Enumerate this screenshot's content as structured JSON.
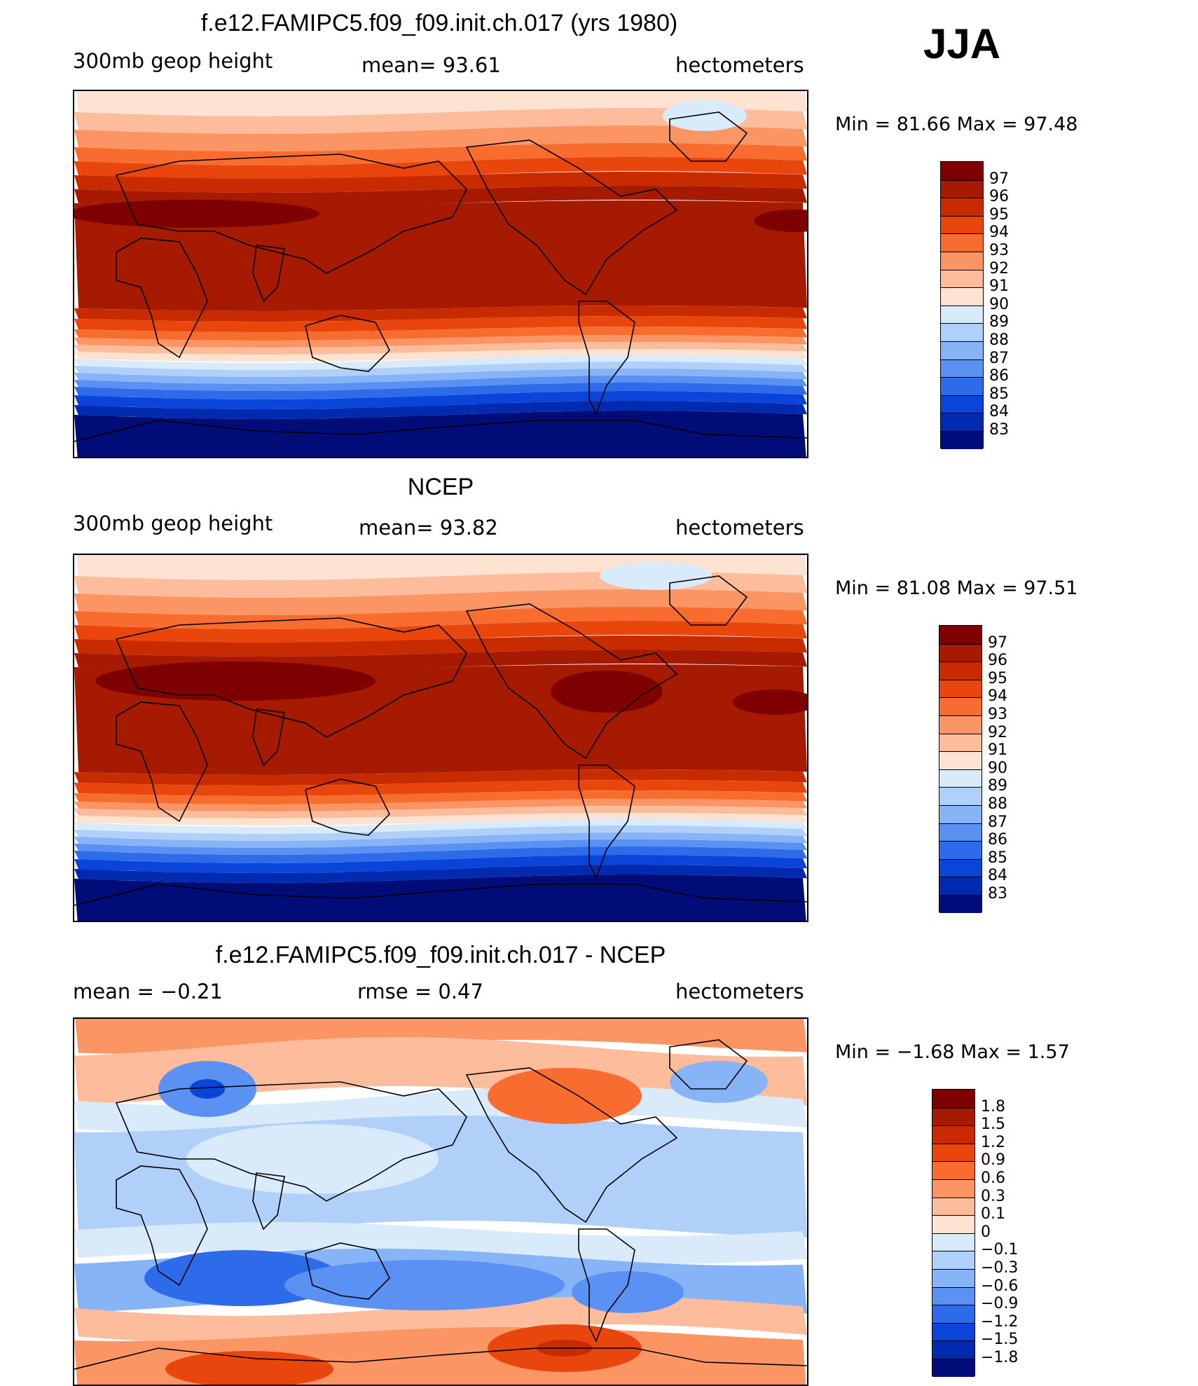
{
  "season": "JJA",
  "panels": [
    {
      "id": "model",
      "title": "f.e12.FAMIPC5.f09_f09.init.ch.017 (yrs 1980)",
      "left_label": "300mb geop height",
      "mid_label": "mean=   93.61",
      "right_label": "hectometers",
      "minmax": "Min =   81.66 Max =   97.48",
      "colorbar": {
        "labels": [
          "97",
          "96",
          "95",
          "94",
          "93",
          "92",
          "91",
          "90",
          "89",
          "88",
          "87",
          "86",
          "85",
          "84",
          "83"
        ],
        "colors": [
          "#7f0000",
          "#a51a00",
          "#c92b00",
          "#e8460c",
          "#f86c30",
          "#fb9564",
          "#fdbc9c",
          "#fee3d2",
          "#d9ebfb",
          "#b0d0fa",
          "#86b4f7",
          "#5b91f2",
          "#2e6bea",
          "#0a44d9",
          "#002ab0",
          "#000c78"
        ]
      }
    },
    {
      "id": "obs",
      "title": "NCEP",
      "left_label": "300mb geop height",
      "mid_label": "mean=   93.82",
      "right_label": "hectometers",
      "minmax": "Min =   81.08 Max =   97.51",
      "colorbar": {
        "labels": [
          "97",
          "96",
          "95",
          "94",
          "93",
          "92",
          "91",
          "90",
          "89",
          "88",
          "87",
          "86",
          "85",
          "84",
          "83"
        ],
        "colors": [
          "#7f0000",
          "#a51a00",
          "#c92b00",
          "#e8460c",
          "#f86c30",
          "#fb9564",
          "#fdbc9c",
          "#fee3d2",
          "#d9ebfb",
          "#b0d0fa",
          "#86b4f7",
          "#5b91f2",
          "#2e6bea",
          "#0a44d9",
          "#002ab0",
          "#000c78"
        ]
      }
    },
    {
      "id": "diff",
      "title": "f.e12.FAMIPC5.f09_f09.init.ch.017 - NCEP",
      "left_label": "mean =    −0.21",
      "mid_label": "rmse =     0.47",
      "right_label": "hectometers",
      "minmax": "Min =   −1.68 Max =     1.57",
      "colorbar": {
        "labels": [
          "1.8",
          "1.5",
          "1.2",
          "0.9",
          "0.6",
          "0.3",
          "0.1",
          "0",
          "−0.1",
          "−0.3",
          "−0.6",
          "−0.9",
          "−1.2",
          "−1.5",
          "−1.8"
        ],
        "colors": [
          "#7f0000",
          "#a51a00",
          "#c92b00",
          "#e8460c",
          "#f86c30",
          "#fb9564",
          "#fdbc9c",
          "#fee3d2",
          "#d9ebfb",
          "#b0d0fa",
          "#86b4f7",
          "#5b91f2",
          "#2e6bea",
          "#0a44d9",
          "#002ab0",
          "#000c78"
        ]
      }
    }
  ]
}
